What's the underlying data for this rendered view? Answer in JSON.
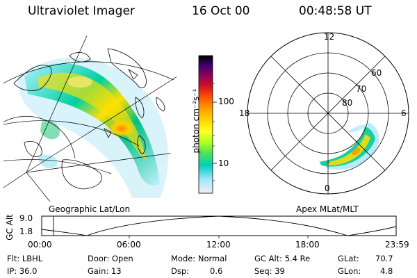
{
  "header": {
    "title": "Ultraviolet Imager",
    "date": "16 Oct 00",
    "time": "00:48:58 UT"
  },
  "geo_panel": {
    "label": "Geographic Lat/Lon"
  },
  "colorbar": {
    "unit_label": "photon cm⁻²s⁻¹",
    "ticks": [
      "100",
      "10"
    ],
    "colors": [
      "#000000",
      "#2a0040",
      "#6a006a",
      "#a00040",
      "#d01010",
      "#ff4000",
      "#ff8c00",
      "#ffc000",
      "#ffff00",
      "#c8ff00",
      "#60ff20",
      "#00e070",
      "#00d0d0",
      "#60e0ff",
      "#c0f0ff",
      "#f0f0f0"
    ]
  },
  "polar_panel": {
    "label": "Apex MLat/MLT",
    "mlt_labels": {
      "top": "12",
      "left": "18",
      "right": "6",
      "bottom": "0"
    },
    "mlat_labels": [
      "60",
      "70",
      "80"
    ]
  },
  "altitude_plot": {
    "axis_label": "GC Alt",
    "y_ticks": [
      "9.0",
      "1.8"
    ],
    "x_ticks": [
      "00:00",
      "06:00",
      "12:00",
      "18:00",
      "23:59"
    ],
    "current_time_marker": "00:48:58",
    "marker_color": "#c00000"
  },
  "info": {
    "filter": "Flt: LBHL",
    "ip": "IP: 36.0",
    "door": "Door: Open",
    "gain": "Gain: 13",
    "mode": "Mode: Normal",
    "dsp_label": "Dsp:",
    "dsp_value": "0.6",
    "gc_alt": "GC Alt: 5.4 Re",
    "seq": "Seq: 39",
    "glat_label": "GLat:",
    "glat_value": "70.7",
    "glon_label": "GLon:",
    "glon_value": "4.8"
  }
}
